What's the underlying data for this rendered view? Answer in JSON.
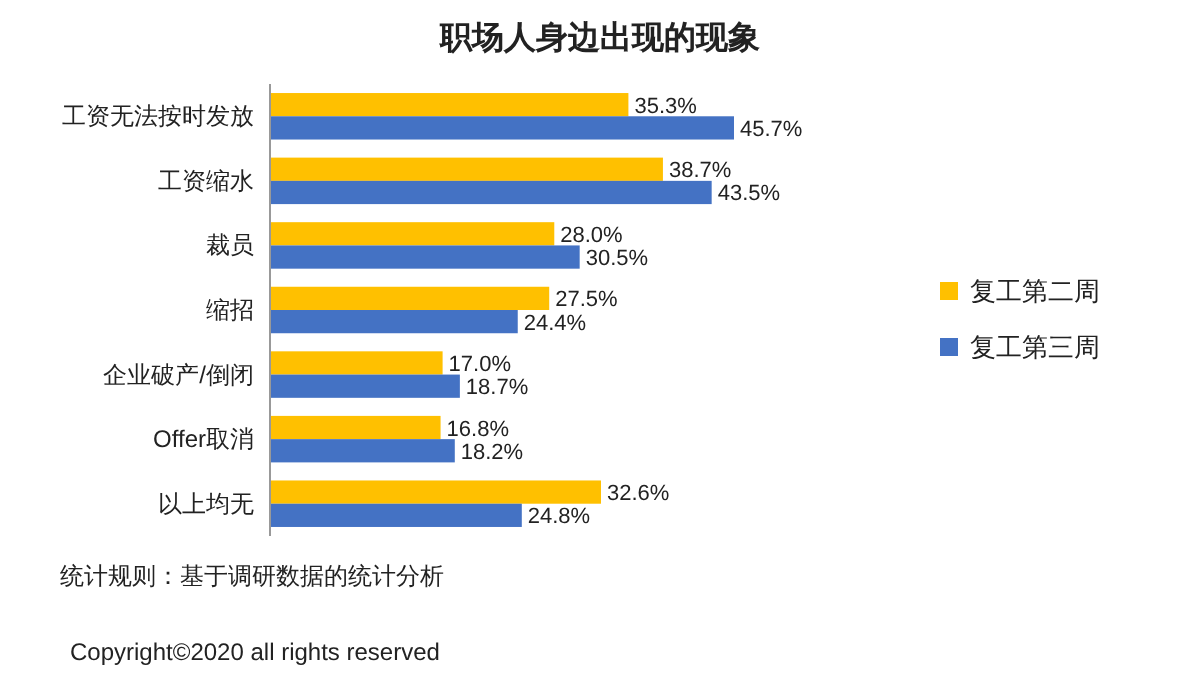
{
  "chart_data": {
    "type": "bar",
    "orientation": "horizontal",
    "title": "职场人身边出现的现象",
    "categories": [
      "工资无法按时发放",
      "工资缩水",
      "裁员",
      "缩招",
      "企业破产/倒闭",
      "Offer取消",
      "以上均无"
    ],
    "series": [
      {
        "name": "复工第二周",
        "color": "#ffc000",
        "values": [
          35.3,
          38.7,
          28.0,
          27.5,
          17.0,
          16.8,
          32.6
        ],
        "value_labels": [
          "35.3%",
          "38.7%",
          "28.0%",
          "27.5%",
          "17.0%",
          "16.8%",
          "32.6%"
        ]
      },
      {
        "name": "复工第三周",
        "color": "#4472c4",
        "values": [
          45.7,
          43.5,
          30.5,
          24.4,
          18.7,
          18.2,
          24.8
        ],
        "value_labels": [
          "45.7%",
          "43.5%",
          "30.5%",
          "24.4%",
          "18.7%",
          "18.2%",
          "24.8%"
        ]
      }
    ],
    "legend": "right",
    "annotations": [
      "统计规则：基于调研数据的统计分析",
      "Copyright©2020 all rights reserved"
    ]
  }
}
